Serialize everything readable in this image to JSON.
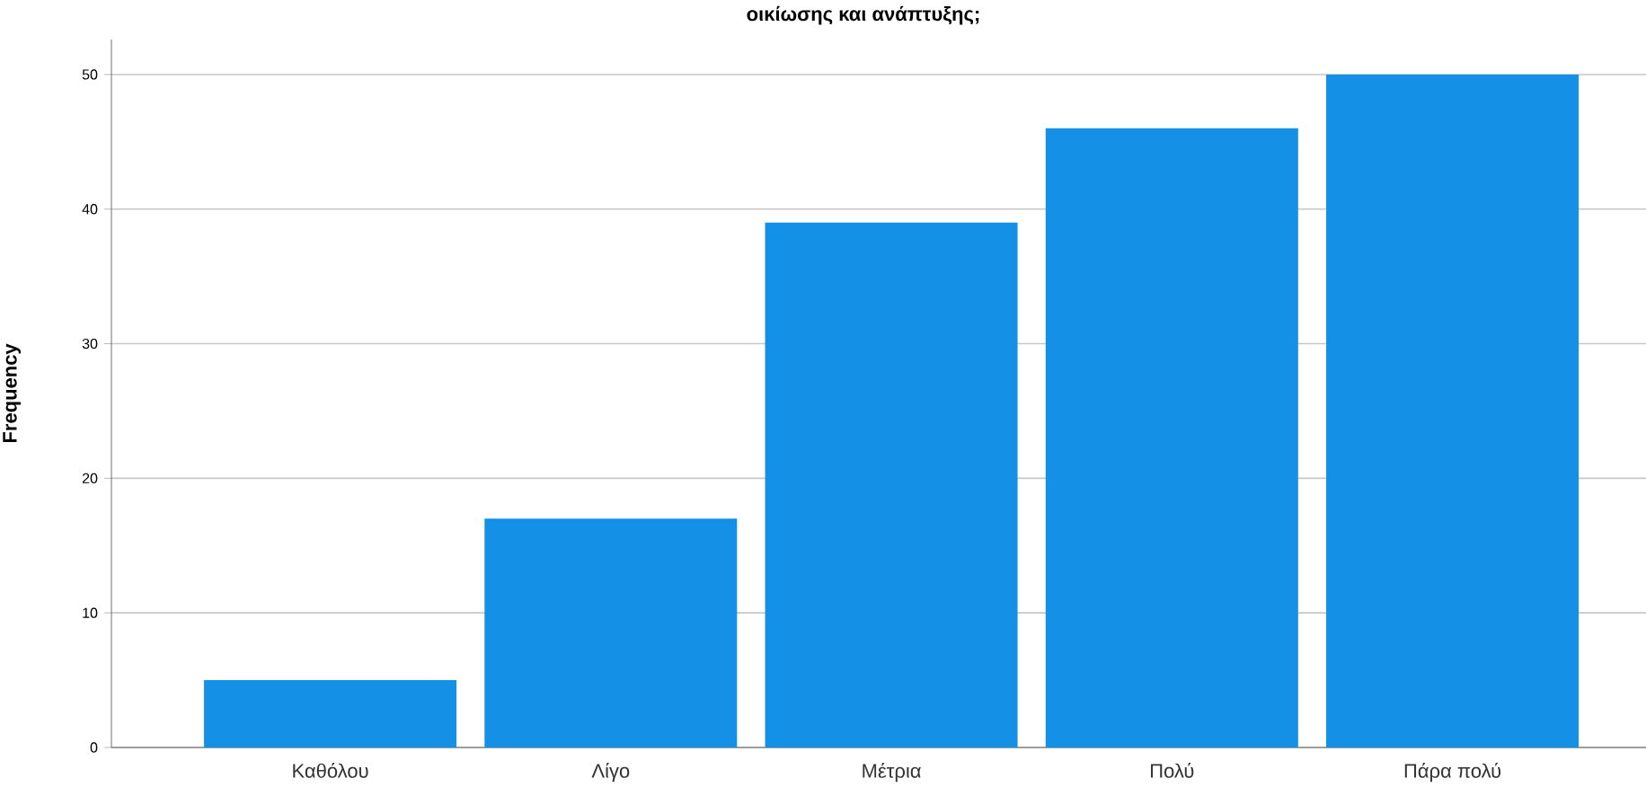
{
  "chart_data": {
    "type": "bar",
    "title": "οικίωσης και ανάπτυξης;",
    "ylabel": "Frequency",
    "categories": [
      "Καθόλου",
      "Λίγο",
      "Μέτρια",
      "Πολύ",
      "Πάρα πολύ"
    ],
    "values": [
      5,
      17,
      39,
      46,
      50
    ],
    "color": "#1490e6",
    "ylim": [
      0,
      52.6
    ],
    "yticks": [
      0,
      10,
      20,
      30,
      40,
      50
    ],
    "grid": "y"
  }
}
